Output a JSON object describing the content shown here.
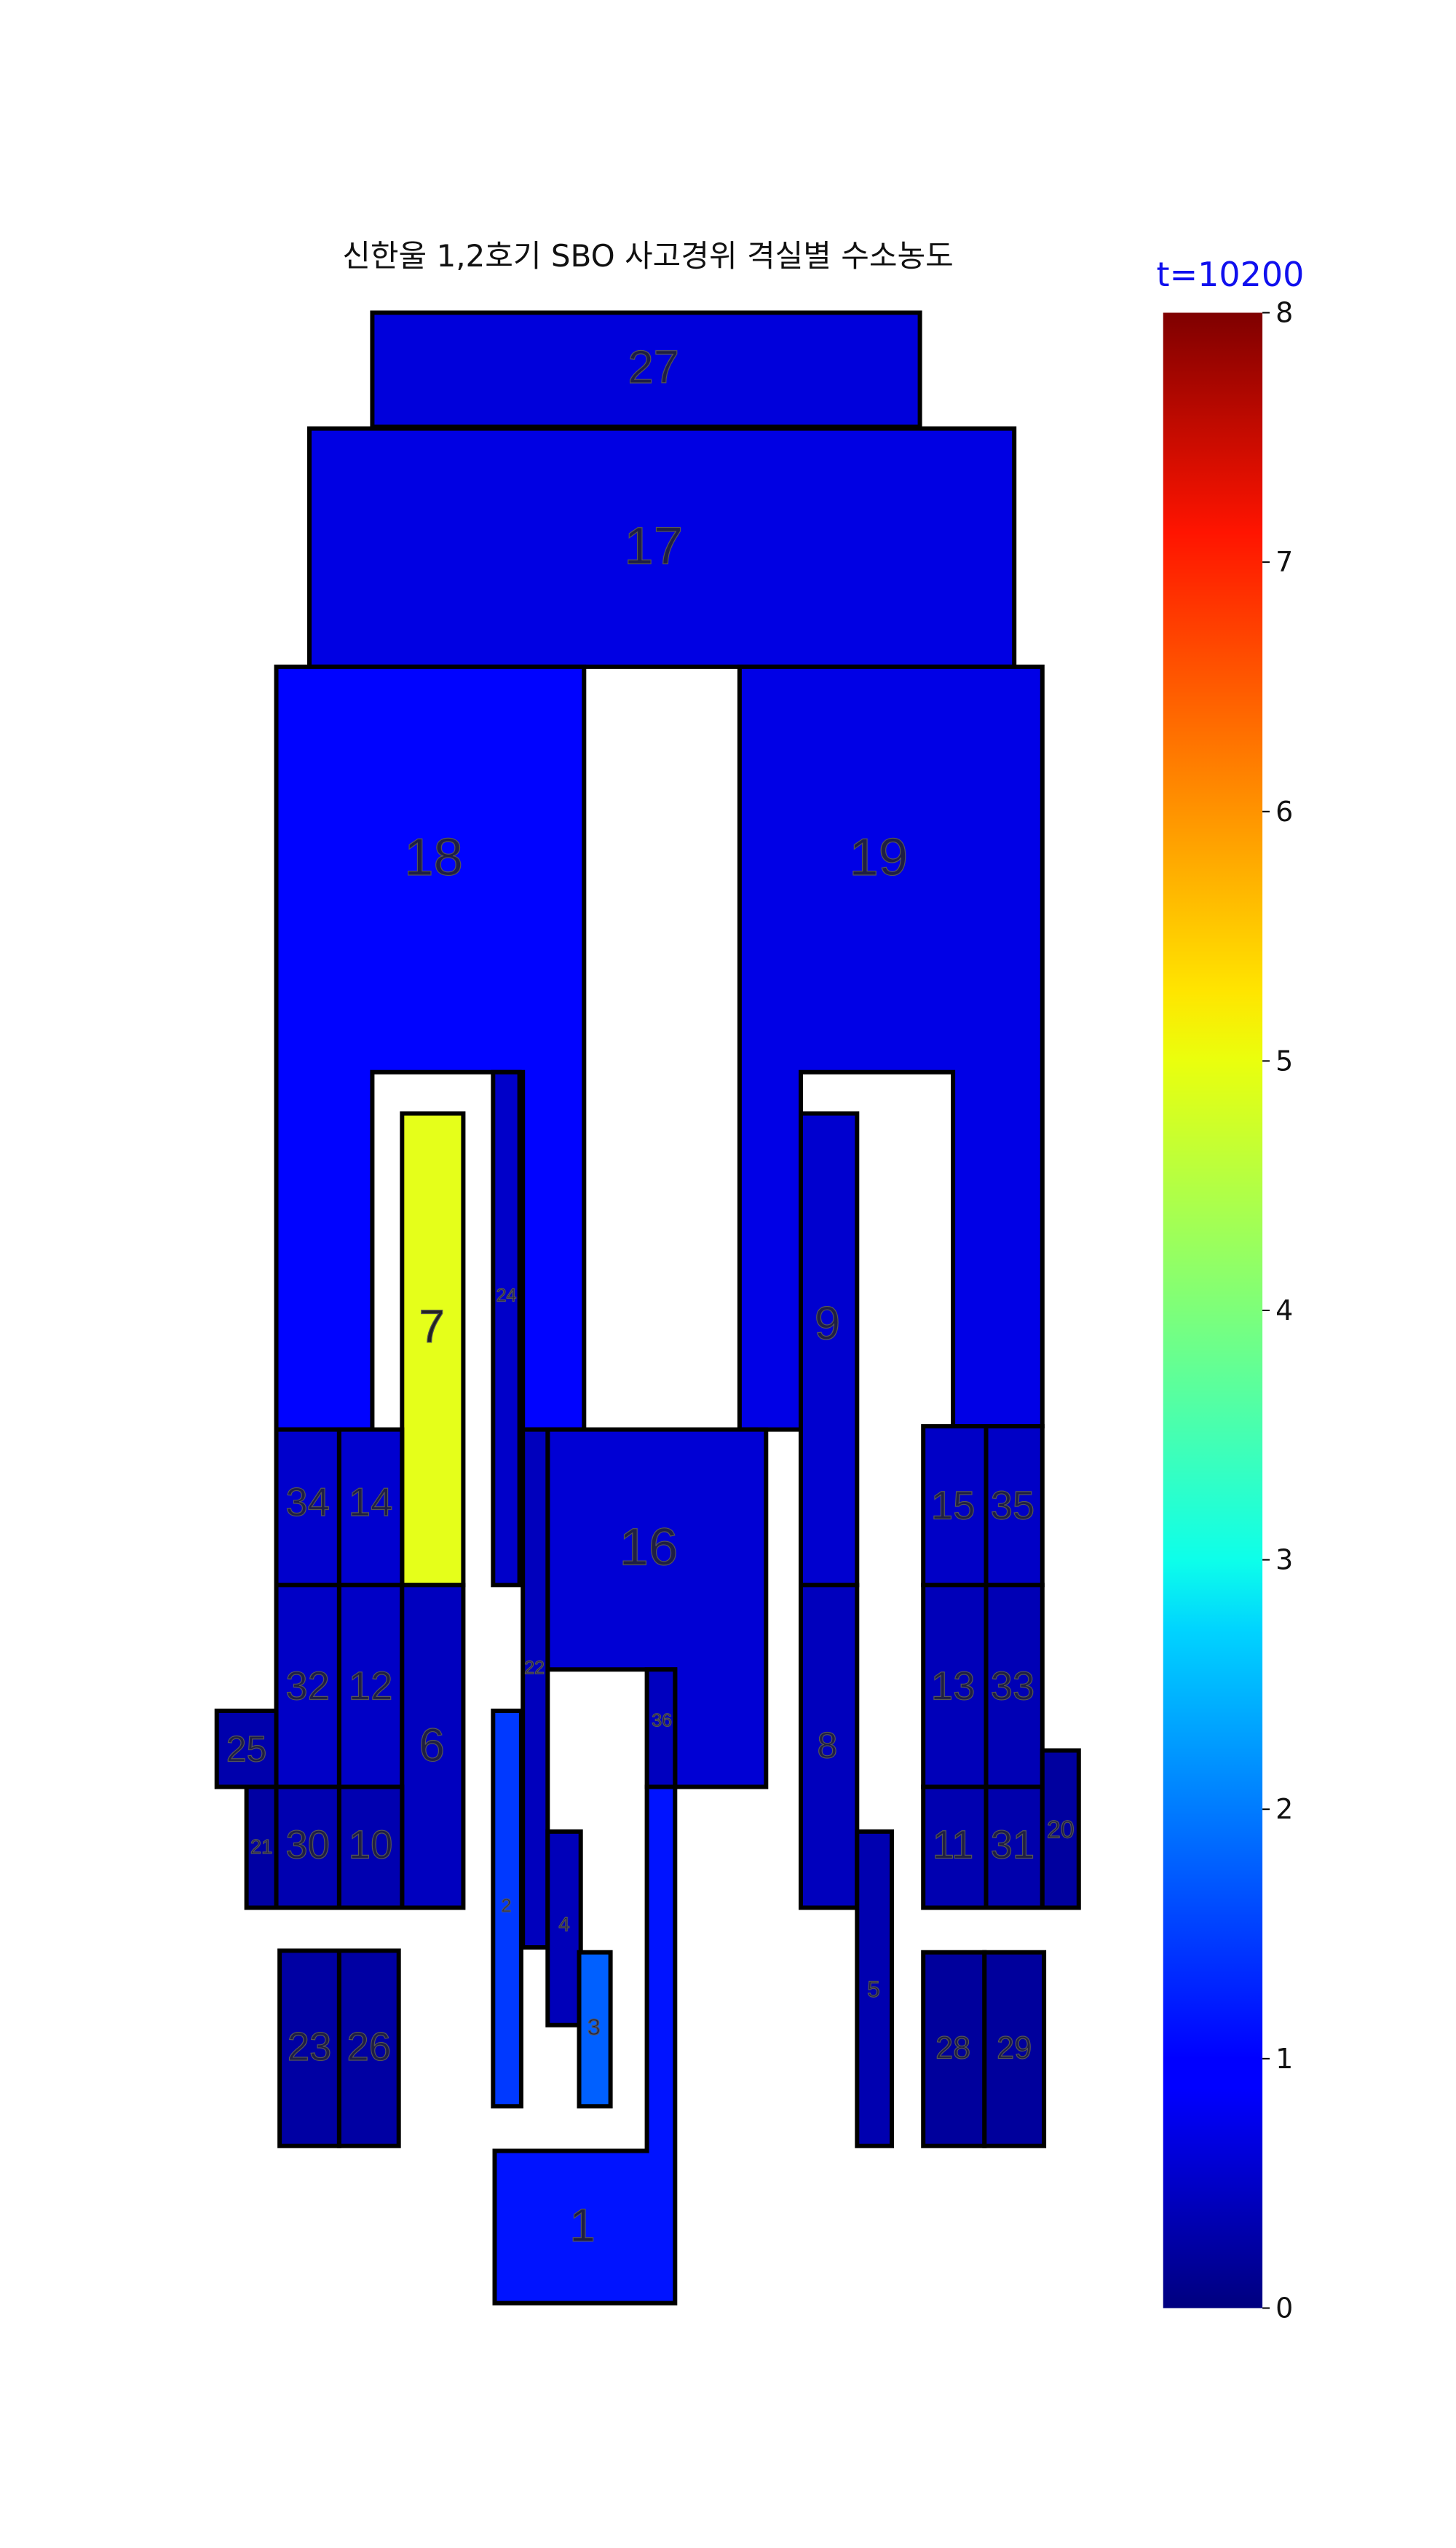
{
  "title": "신한울 1,2호기 SBO 사고경위 격실별 수소농도",
  "time_label": "t=10200",
  "colorbar": {
    "min": 0,
    "max": 8,
    "ticks": [
      "0",
      "1",
      "2",
      "3",
      "4",
      "5",
      "6",
      "7",
      "8"
    ],
    "colormap": "jet"
  },
  "compartments": [
    {
      "id": "27",
      "value": 0.72
    },
    {
      "id": "17",
      "value": 0.78
    },
    {
      "id": "18",
      "value": 1.02
    },
    {
      "id": "19",
      "value": 0.8
    },
    {
      "id": "7",
      "value": 4.8
    },
    {
      "id": "24",
      "value": 0.58
    },
    {
      "id": "9",
      "value": 0.62
    },
    {
      "id": "34",
      "value": 0.6
    },
    {
      "id": "14",
      "value": 0.62
    },
    {
      "id": "16",
      "value": 0.66
    },
    {
      "id": "15",
      "value": 0.55
    },
    {
      "id": "35",
      "value": 0.55
    },
    {
      "id": "22",
      "value": 0.48
    },
    {
      "id": "32",
      "value": 0.55
    },
    {
      "id": "12",
      "value": 0.55
    },
    {
      "id": "6",
      "value": 0.5
    },
    {
      "id": "36",
      "value": 0.5
    },
    {
      "id": "8",
      "value": 0.48
    },
    {
      "id": "13",
      "value": 0.45
    },
    {
      "id": "33",
      "value": 0.42
    },
    {
      "id": "25",
      "value": 0.35
    },
    {
      "id": "21",
      "value": 0.28
    },
    {
      "id": "30",
      "value": 0.38
    },
    {
      "id": "10",
      "value": 0.38
    },
    {
      "id": "11",
      "value": 0.38
    },
    {
      "id": "31",
      "value": 0.35
    },
    {
      "id": "20",
      "value": 0.25
    },
    {
      "id": "2",
      "value": 1.45
    },
    {
      "id": "4",
      "value": 0.45
    },
    {
      "id": "3",
      "value": 1.75
    },
    {
      "id": "5",
      "value": 0.38
    },
    {
      "id": "23",
      "value": 0.28
    },
    {
      "id": "26",
      "value": 0.28
    },
    {
      "id": "28",
      "value": 0.22
    },
    {
      "id": "29",
      "value": 0.22
    },
    {
      "id": "1",
      "value": 1.15
    }
  ]
}
